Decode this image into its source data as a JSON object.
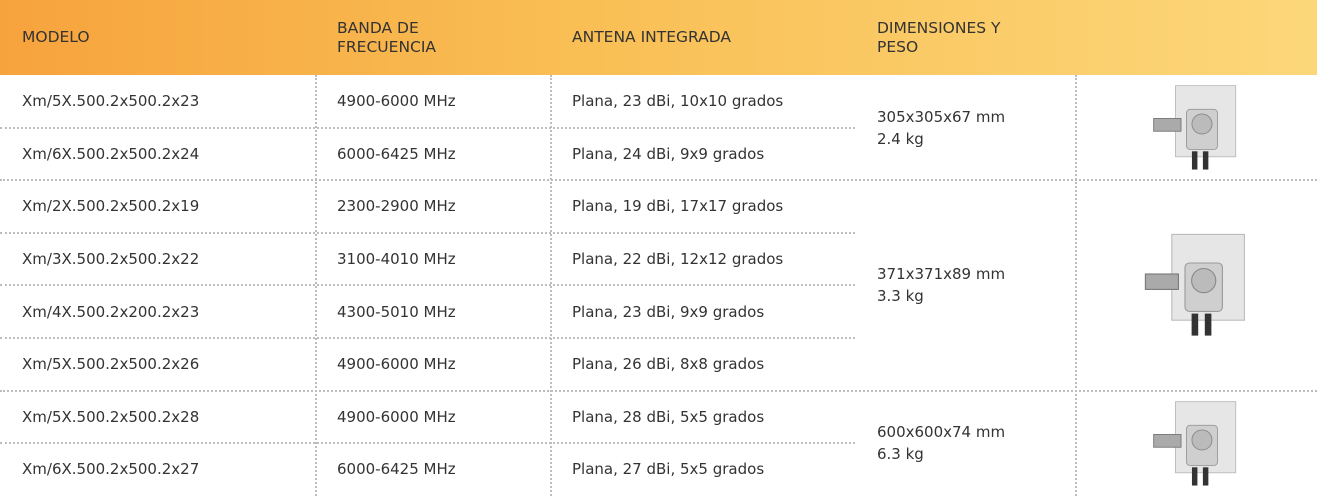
{
  "header": {
    "model": "MODELO",
    "band": "BANDA DE FRECUENCIA",
    "antenna": "ANTENA INTEGRADA",
    "dimensions": "DIMENSIONES Y PESO"
  },
  "groups": [
    {
      "size": "305x305x67 mm",
      "weight": "2.4 kg",
      "rows": [
        {
          "model": "Xm/5X.500.2x500.2x23",
          "band": "4900-6000 MHz",
          "antenna": "Plana, 23 dBi, 10x10 grados"
        },
        {
          "model": "Xm/6X.500.2x500.2x24",
          "band": "6000-6425 MHz",
          "antenna": "Plana, 24 dBi, 9x9 grados"
        }
      ]
    },
    {
      "size": "371x371x89 mm",
      "weight": "3.3 kg",
      "rows": [
        {
          "model": "Xm/2X.500.2x500.2x19",
          "band": "2300-2900 MHz",
          "antenna": "Plana, 19 dBi, 17x17 grados"
        },
        {
          "model": "Xm/3X.500.2x500.2x22",
          "band": "3100-4010 MHz",
          "antenna": "Plana, 22 dBi, 12x12 grados"
        },
        {
          "model": "Xm/4X.500.2x200.2x23",
          "band": "4300-5010 MHz",
          "antenna": "Plana, 23 dBi, 9x9 grados"
        },
        {
          "model": "Xm/5X.500.2x500.2x26",
          "band": "4900-6000 MHz",
          "antenna": "Plana, 26 dBi, 8x8 grados"
        }
      ]
    },
    {
      "size": "600x600x74 mm",
      "weight": "6.3 kg",
      "rows": [
        {
          "model": "Xm/5X.500.2x500.2x28",
          "band": "4900-6000 MHz",
          "antenna": "Plana, 28 dBi, 5x5 grados"
        },
        {
          "model": "Xm/6X.500.2x500.2x27",
          "band": "6000-6425 MHz",
          "antenna": "Plana, 27 dBi, 5x5 grados"
        }
      ]
    }
  ]
}
